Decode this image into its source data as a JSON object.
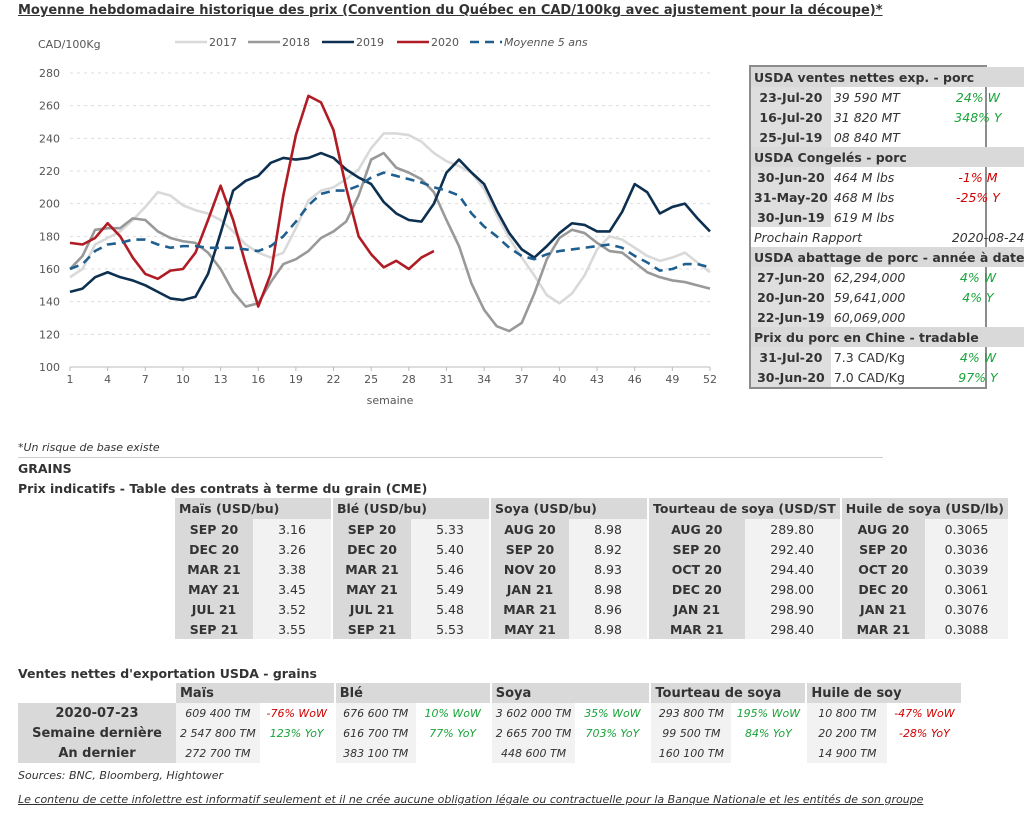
{
  "title": "Moyenne hebdomadaire historique des prix (Convention du Québec en CAD/100kg avec ajustement pour la découpe)*",
  "chart_data": {
    "type": "line",
    "ylabel": "CAD/100Kg",
    "xlabel": "semaine",
    "ylim": [
      100,
      280
    ],
    "yticks": [
      100,
      120,
      140,
      160,
      180,
      200,
      220,
      240,
      260,
      280
    ],
    "xticks": [
      1,
      4,
      7,
      10,
      13,
      16,
      19,
      22,
      25,
      28,
      31,
      34,
      37,
      40,
      43,
      46,
      49,
      52
    ],
    "grid": "horizontal dashed",
    "legend": "top",
    "series": [
      {
        "name": "2017",
        "color": "#d9d9d9",
        "dash": false,
        "values": [
          155,
          160,
          175,
          179,
          183,
          190,
          198,
          207,
          205,
          199,
          196,
          194,
          190,
          183,
          175,
          170,
          167,
          170,
          185,
          202,
          208,
          210,
          215,
          221,
          234,
          243,
          243,
          242,
          238,
          231,
          226,
          223,
          219,
          209,
          193,
          179,
          167,
          156,
          144,
          139,
          145,
          156,
          172,
          180,
          178,
          173,
          168,
          165,
          167,
          170,
          164,
          158
        ]
      },
      {
        "name": "2018",
        "color": "#999999",
        "dash": false,
        "values": [
          160,
          168,
          184,
          185,
          185,
          191,
          190,
          183,
          179,
          177,
          176,
          170,
          160,
          146,
          137,
          139,
          152,
          163,
          166,
          171,
          179,
          183,
          189,
          205,
          227,
          231,
          222,
          219,
          215,
          207,
          190,
          174,
          151,
          135,
          125,
          122,
          127,
          145,
          166,
          179,
          184,
          182,
          176,
          171,
          170,
          164,
          158,
          155,
          153,
          152,
          150,
          148
        ]
      },
      {
        "name": "2019",
        "color": "#0d3050",
        "dash": false,
        "values": [
          146,
          148,
          155,
          158,
          155,
          153,
          150,
          146,
          142,
          141,
          143,
          157,
          182,
          208,
          214,
          217,
          225,
          228,
          227,
          228,
          231,
          228,
          221,
          216,
          212,
          201,
          194,
          190,
          189,
          200,
          219,
          227,
          219,
          212,
          196,
          182,
          172,
          167,
          174,
          182,
          188,
          187,
          183,
          183,
          195,
          212,
          207,
          194,
          198,
          200,
          191,
          183
        ]
      },
      {
        "name": "2020",
        "color": "#b01c24",
        "dash": false,
        "values": [
          176,
          175,
          179,
          188,
          180,
          167,
          157,
          154,
          159,
          160,
          170,
          190,
          211,
          190,
          163,
          137,
          157,
          205,
          242,
          266,
          262,
          245,
          210,
          180,
          169,
          161,
          165,
          160,
          167,
          171
        ]
      },
      {
        "name": "Moyenne 5 ans",
        "color": "#1f5f8f",
        "dash": true,
        "values": [
          160,
          163,
          171,
          175,
          176,
          178,
          178,
          175,
          173,
          174,
          174,
          173,
          173,
          173,
          172,
          171,
          174,
          180,
          189,
          199,
          206,
          208,
          208,
          211,
          216,
          219,
          217,
          215,
          213,
          210,
          208,
          205,
          194,
          186,
          180,
          173,
          168,
          166,
          169,
          171,
          172,
          173,
          174,
          175,
          173,
          168,
          164,
          159,
          160,
          163,
          163,
          161
        ]
      }
    ]
  },
  "panel": {
    "sections": [
      {
        "header": "USDA ventes nettes exp. - porc",
        "rows": [
          {
            "date": "23-Jul-20",
            "value": "39 590  MT",
            "change": "24% W",
            "sign": "pos"
          },
          {
            "date": "16-Jul-20",
            "value": "31 820  MT",
            "change": "348% Y",
            "sign": "pos"
          },
          {
            "date": "25-Jul-19",
            "value": "08 840  MT",
            "change": "",
            "sign": ""
          }
        ]
      },
      {
        "header": "USDA Congelés - porc",
        "rows": [
          {
            "date": "30-Jun-20",
            "value": "464 M lbs",
            "change": "-1% M",
            "sign": "neg"
          },
          {
            "date": "31-May-20",
            "value": "468 M lbs",
            "change": "-25% Y",
            "sign": "neg"
          },
          {
            "date": "30-Jun-19",
            "value": "619 M lbs",
            "change": "",
            "sign": ""
          }
        ],
        "footer": {
          "label": "Prochain Rapport",
          "value": "2020-08-24"
        }
      },
      {
        "header": "USDA abattage de porc - année à date",
        "rows": [
          {
            "date": "27-Jun-20",
            "value": "62,294,000",
            "change": "4% W",
            "sign": "pos"
          },
          {
            "date": "20-Jun-20",
            "value": "59,641,000",
            "change": "4% Y",
            "sign": "pos"
          },
          {
            "date": "22-Jun-19",
            "value": "60,069,000",
            "change": "",
            "sign": ""
          }
        ]
      },
      {
        "header": "Prix du porc en Chine - tradable",
        "rows": [
          {
            "date": "31-Jul-20",
            "value": "7.3 CAD/Kg",
            "change": "4% W",
            "sign": "pos",
            "upright": true
          },
          {
            "date": "30-Jun-20",
            "value": "7.0 CAD/Kg",
            "change": "97% Y",
            "sign": "pos",
            "upright": true
          }
        ]
      }
    ]
  },
  "note": "*Un risque de base existe",
  "grains_title": "GRAINS",
  "prix_title": "Prix indicatifs - Table des contrats à terme du grain (CME)",
  "grain_table": {
    "headers": [
      "Maïs (USD/bu)",
      "Blé (USD/bu)",
      "Soya (USD/bu)",
      "Tourteau de soya (USD/ST",
      "Huile de soya (USD/lb)"
    ],
    "rows": [
      [
        [
          "SEP 20",
          "3.16"
        ],
        [
          "SEP 20",
          "5.33"
        ],
        [
          "AUG 20",
          "8.98"
        ],
        [
          "AUG 20",
          "289.80"
        ],
        [
          "AUG 20",
          "0.3065"
        ]
      ],
      [
        [
          "DEC 20",
          "3.26"
        ],
        [
          "DEC 20",
          "5.40"
        ],
        [
          "SEP 20",
          "8.92"
        ],
        [
          "SEP 20",
          "292.40"
        ],
        [
          "SEP 20",
          "0.3036"
        ]
      ],
      [
        [
          "MAR 21",
          "3.38"
        ],
        [
          "MAR 21",
          "5.46"
        ],
        [
          "NOV 20",
          "8.93"
        ],
        [
          "OCT 20",
          "294.40"
        ],
        [
          "OCT 20",
          "0.3039"
        ]
      ],
      [
        [
          "MAY 21",
          "3.45"
        ],
        [
          "MAY 21",
          "5.49"
        ],
        [
          "JAN 21",
          "8.98"
        ],
        [
          "DEC 20",
          "298.00"
        ],
        [
          "DEC 20",
          "0.3061"
        ]
      ],
      [
        [
          "JUL 21",
          "3.52"
        ],
        [
          "JUL 21",
          "5.48"
        ],
        [
          "MAR 21",
          "8.96"
        ],
        [
          "JAN 21",
          "298.90"
        ],
        [
          "JAN 21",
          "0.3076"
        ]
      ],
      [
        [
          "SEP 21",
          "3.55"
        ],
        [
          "SEP 21",
          "5.53"
        ],
        [
          "MAY 21",
          "8.98"
        ],
        [
          "MAR 21",
          "298.40"
        ],
        [
          "MAR 21",
          "0.3088"
        ]
      ]
    ]
  },
  "ventes_title": "Ventes nettes d'exportation USDA - grains",
  "ventes_table": {
    "headers": [
      "Maïs",
      "Blé",
      "Soya",
      "Tourteau de soya",
      "Huile de soy"
    ],
    "rows": [
      {
        "label": "2020-07-23",
        "cells": [
          [
            "609 400 TM",
            "-76% WoW",
            "neg"
          ],
          [
            "676 600 TM",
            "10% WoW",
            "pos"
          ],
          [
            "3 602 000 TM",
            "35% WoW",
            "pos"
          ],
          [
            "293 800 TM",
            "195% WoW",
            "pos"
          ],
          [
            "10 800 TM",
            "-47% WoW",
            "neg"
          ]
        ]
      },
      {
        "label": "Semaine dernière",
        "cells": [
          [
            "2 547 800 TM",
            "123% YoY",
            "pos"
          ],
          [
            "616 700 TM",
            "77% YoY",
            "pos"
          ],
          [
            "2 665 700 TM",
            "703% YoY",
            "pos"
          ],
          [
            "99 500 TM",
            "84% YoY",
            "pos"
          ],
          [
            "20 200 TM",
            "-28% YoY",
            "neg"
          ]
        ]
      },
      {
        "label": "An dernier",
        "cells": [
          [
            "272 700 TM",
            "",
            ""
          ],
          [
            "383 100 TM",
            "",
            ""
          ],
          [
            "448 600 TM",
            "",
            ""
          ],
          [
            "160 100 TM",
            "",
            ""
          ],
          [
            "14 900 TM",
            "",
            ""
          ]
        ]
      }
    ]
  },
  "sources": "Sources: BNC, Bloomberg, Hightower",
  "disclaimer": "Le contenu de cette infolettre est informatif seulement et il ne crée aucune obligation légale ou contractuelle pour la Banque Nationale et les entités de son groupe"
}
